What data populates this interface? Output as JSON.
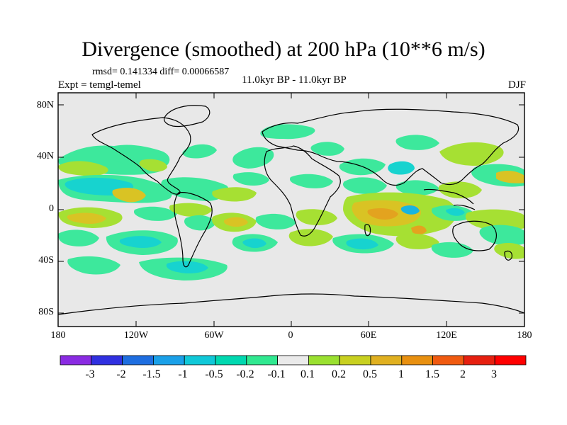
{
  "title": "Divergence (smoothed) at 200 hPa (10**6 m/s)",
  "stats": "rmsd= 0.141334  diff= 0.00066587",
  "experiment": "Expt = temgl-temel",
  "period": "11.0kyr BP - 11.0kyr BP",
  "season": "DJF",
  "y_ticks": [
    "80N",
    "40N",
    "0",
    "40S",
    "80S"
  ],
  "x_ticks": [
    "180",
    "120W",
    "60W",
    "0",
    "60E",
    "120E",
    "180"
  ],
  "colorbar": {
    "labels": [
      "-3",
      "-2",
      "-1.5",
      "-1",
      "-0.5",
      "-0.2",
      "-0.1",
      "0.1",
      "0.2",
      "0.5",
      "1",
      "1.5",
      "2",
      "3"
    ],
    "colors": [
      "#8a2be2",
      "#3030e0",
      "#1e6ee0",
      "#1aa0e8",
      "#10c8d8",
      "#00d8b0",
      "#30e890",
      "#eaeaea",
      "#9ae030",
      "#c8d020",
      "#e0b020",
      "#e89010",
      "#f05a10",
      "#e62010",
      "#ff0000"
    ]
  },
  "map_colors": {
    "background": "#e8e8e8",
    "neg_weak": "#3de89c",
    "neg_mid": "#17d3cf",
    "neg_strong": "#19b4e0",
    "pos_weak": "#a6e033",
    "pos_mid": "#d9c324",
    "pos_strong": "#e3a31f"
  }
}
